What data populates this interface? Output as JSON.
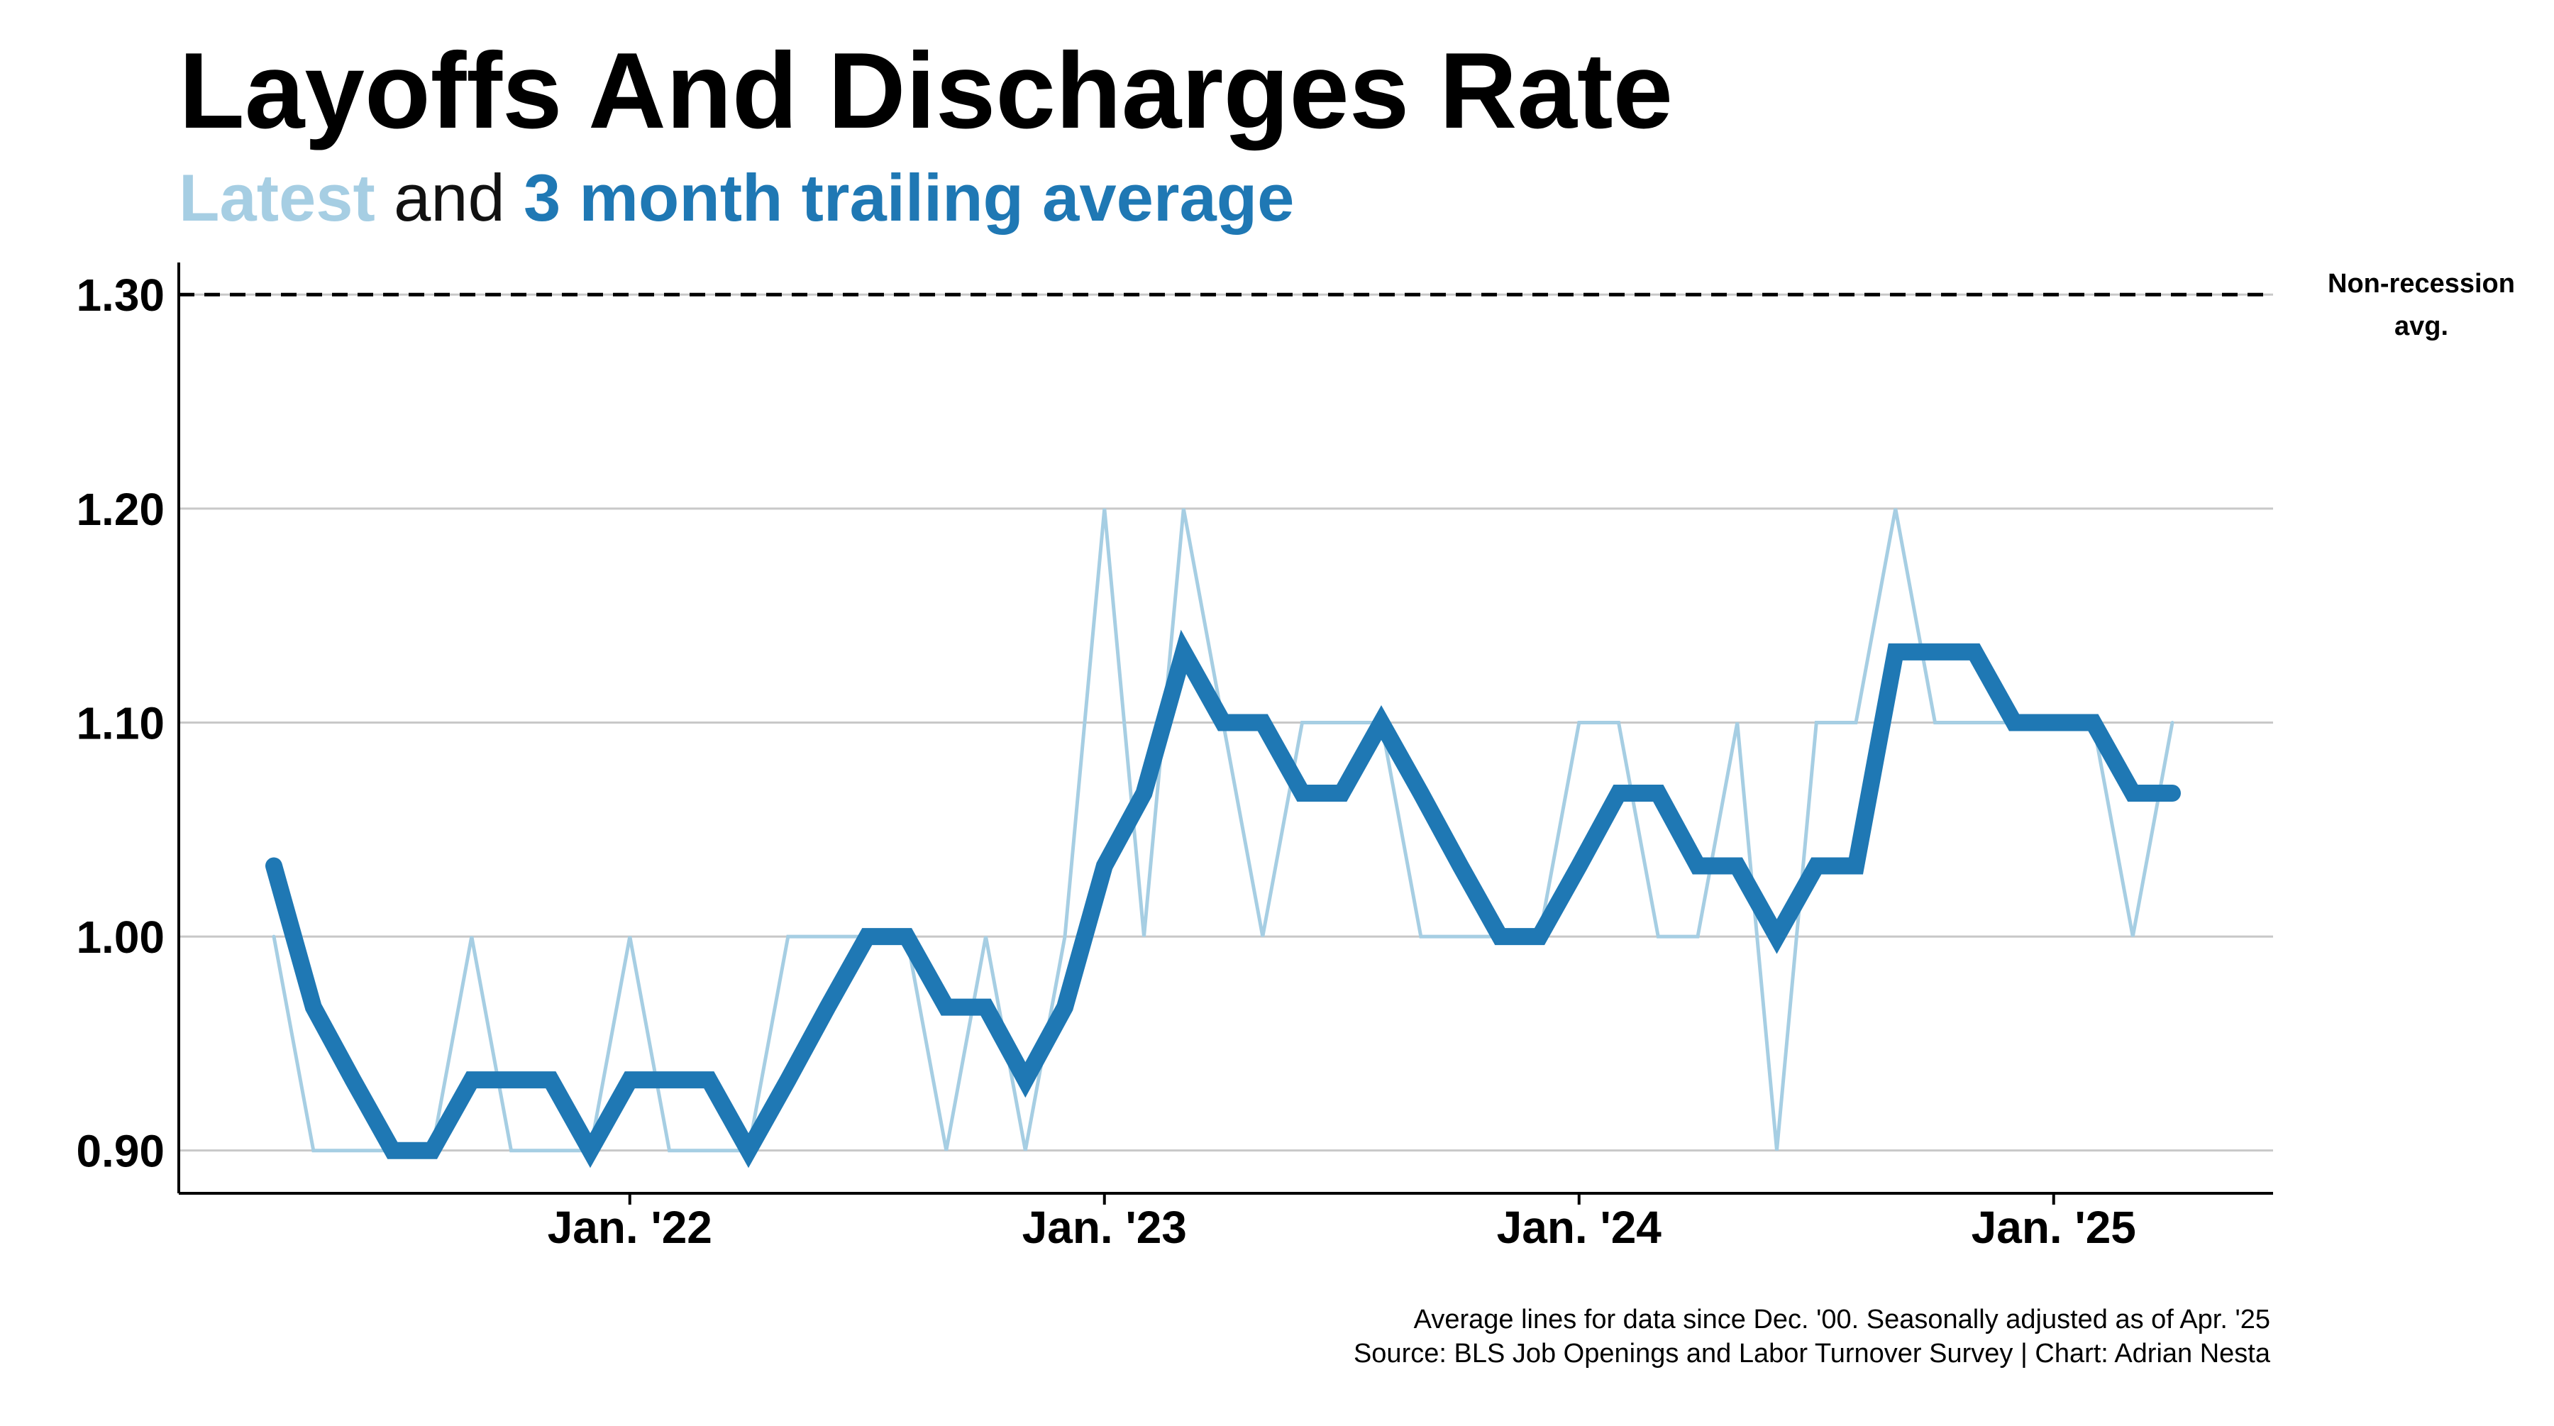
{
  "title": "Layoffs And Discharges Rate",
  "subtitle": {
    "latest_label": "Latest",
    "joiner": " and ",
    "average_label": "3 month trailing average"
  },
  "footer": {
    "note": "Average lines for data since Dec. '00. Seasonally adjusted as of Apr. '25",
    "source": "Source: BLS Job Openings and Labor Turnover Survey | Chart: Adrian Nesta"
  },
  "chart_data": {
    "type": "line",
    "x_start": "2021-04",
    "x_ticks": [
      {
        "label": "Jan. '22",
        "month_index": 9
      },
      {
        "label": "Jan. '23",
        "month_index": 21
      },
      {
        "label": "Jan. '24",
        "month_index": 33
      },
      {
        "label": "Jan. '25",
        "month_index": 45
      }
    ],
    "y_ticks": [
      0.9,
      1.0,
      1.1,
      1.2,
      1.3
    ],
    "y_tick_labels": [
      "0.90",
      "1.00",
      "1.10",
      "1.20",
      "1.30"
    ],
    "ylim": [
      0.88,
      1.315
    ],
    "grid": true,
    "series": [
      {
        "name": "Latest",
        "color": "#a6cee3",
        "values": [
          1.0,
          0.9,
          0.9,
          0.9,
          0.9,
          1.0,
          0.9,
          0.9,
          0.9,
          1.0,
          0.9,
          0.9,
          0.9,
          1.0,
          1.0,
          1.0,
          1.0,
          0.9,
          1.0,
          0.9,
          1.0,
          1.2,
          1.0,
          1.2,
          1.1,
          1.0,
          1.1,
          1.1,
          1.1,
          1.0,
          1.0,
          1.0,
          1.0,
          1.1,
          1.1,
          1.0,
          1.0,
          1.1,
          0.9,
          1.1,
          1.1,
          1.2,
          1.1,
          1.1,
          1.1,
          1.1,
          1.1,
          1.0,
          1.1
        ]
      },
      {
        "name": "3 month trailing average",
        "color": "#1f78b4",
        "values": [
          1.033,
          0.967,
          0.933,
          0.9,
          0.9,
          0.933,
          0.933,
          0.933,
          0.9,
          0.933,
          0.933,
          0.933,
          0.9,
          0.933,
          0.967,
          1.0,
          1.0,
          0.967,
          0.967,
          0.933,
          0.967,
          1.033,
          1.067,
          1.133,
          1.1,
          1.1,
          1.067,
          1.067,
          1.1,
          1.067,
          1.033,
          1.0,
          1.0,
          1.033,
          1.067,
          1.067,
          1.033,
          1.033,
          1.0,
          1.033,
          1.033,
          1.133,
          1.133,
          1.133,
          1.1,
          1.1,
          1.1,
          1.067,
          1.067
        ]
      }
    ],
    "reference_line": {
      "value": 1.3,
      "label_line1": "Non-recession",
      "label_line2": "avg.",
      "style": "dashed",
      "color": "#000000"
    }
  }
}
